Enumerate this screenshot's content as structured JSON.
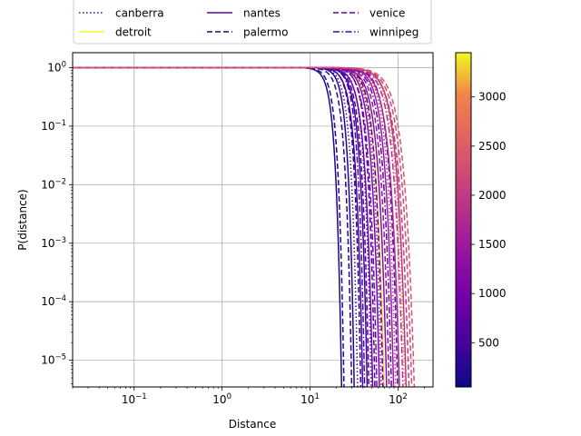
{
  "chart_data": {
    "type": "line",
    "xlabel": "Distance",
    "ylabel": "P(distance)",
    "xscale": "log",
    "yscale": "log",
    "xlim": [
      0.02,
      250
    ],
    "ylim": [
      3.5e-06,
      1.8
    ],
    "grid": true,
    "x_ticks": [
      {
        "value": 0.1,
        "base": "10",
        "exp": "−1"
      },
      {
        "value": 1,
        "base": "10",
        "exp": "0"
      },
      {
        "value": 10,
        "base": "10",
        "exp": "1"
      },
      {
        "value": 100,
        "base": "10",
        "exp": "2"
      }
    ],
    "y_ticks": [
      {
        "value": 1e-05,
        "base": "10",
        "exp": "−5"
      },
      {
        "value": 0.0001,
        "base": "10",
        "exp": "−4"
      },
      {
        "value": 0.001,
        "base": "10",
        "exp": "−3"
      },
      {
        "value": 0.01,
        "base": "10",
        "exp": "−2"
      },
      {
        "value": 0.1,
        "base": "10",
        "exp": "−1"
      },
      {
        "value": 1,
        "base": "10",
        "exp": "0"
      }
    ],
    "legend": {
      "placement": "top",
      "entries": [
        {
          "label": "canberra",
          "style": "dotted",
          "color": "#5b02a3"
        },
        {
          "label": "nantes",
          "style": "solid",
          "color": "#5b02a3"
        },
        {
          "label": "venice",
          "style": "dashed",
          "color": "#5b02a3"
        },
        {
          "label": "detroit",
          "style": "solid",
          "color": "#f0f921"
        },
        {
          "label": "palermo",
          "style": "dashed",
          "color": "#1c0b8a"
        },
        {
          "label": "winnipeg",
          "style": "dashdot",
          "color": "#3d049b"
        }
      ]
    },
    "colorbar": {
      "colormap": "plasma",
      "range": [
        50,
        3450
      ],
      "ticks": [
        500,
        1000,
        1500,
        2000,
        2500,
        3000
      ]
    },
    "series": [
      {
        "style": "solid",
        "cval": 150,
        "tail": 23,
        "k": 7
      },
      {
        "style": "dashed",
        "cval": 250,
        "tail": 24.5,
        "k": 7
      },
      {
        "style": "dashed",
        "cval": 300,
        "tail": 30,
        "k": 6.5
      },
      {
        "style": "solid",
        "cval": 200,
        "tail": 32,
        "k": 7
      },
      {
        "style": "dotted",
        "cval": 350,
        "tail": 35,
        "k": 6.5
      },
      {
        "style": "dashed",
        "cval": 400,
        "tail": 38,
        "k": 6.5
      },
      {
        "style": "solid",
        "cval": 500,
        "tail": 40,
        "k": 6
      },
      {
        "style": "dashdot",
        "cval": 600,
        "tail": 42,
        "k": 6.5
      },
      {
        "style": "solid",
        "cval": 450,
        "tail": 45,
        "k": 6
      },
      {
        "style": "dashed",
        "cval": 700,
        "tail": 47,
        "k": 6
      },
      {
        "style": "dotted",
        "cval": 800,
        "tail": 50,
        "k": 6
      },
      {
        "style": "solid",
        "cval": 900,
        "tail": 52,
        "k": 5.5
      },
      {
        "style": "dashed",
        "cval": 550,
        "tail": 55,
        "k": 6
      },
      {
        "style": "solid",
        "cval": 3300,
        "tail": 70,
        "k": 5
      },
      {
        "style": "dashdot",
        "cval": 1000,
        "tail": 58,
        "k": 5.5
      },
      {
        "style": "solid",
        "cval": 1100,
        "tail": 62,
        "k": 5.5
      },
      {
        "style": "dotted",
        "cval": 1200,
        "tail": 65,
        "k": 5.5
      },
      {
        "style": "dashed",
        "cval": 650,
        "tail": 68,
        "k": 5.5
      },
      {
        "style": "solid",
        "cval": 1300,
        "tail": 75,
        "k": 5
      },
      {
        "style": "dashed",
        "cval": 1400,
        "tail": 80,
        "k": 5
      },
      {
        "style": "dashdot",
        "cval": 750,
        "tail": 85,
        "k": 5
      },
      {
        "style": "solid",
        "cval": 1500,
        "tail": 90,
        "k": 5
      },
      {
        "style": "dotted",
        "cval": 1600,
        "tail": 95,
        "k": 5
      },
      {
        "style": "dashed",
        "cval": 850,
        "tail": 100,
        "k": 5
      },
      {
        "style": "solid",
        "cval": 1700,
        "tail": 105,
        "k": 4.5
      },
      {
        "style": "dashdot",
        "cval": 1800,
        "tail": 115,
        "k": 4.5
      },
      {
        "style": "dotted",
        "cval": 3000,
        "tail": 120,
        "k": 4.5
      },
      {
        "style": "solid",
        "cval": 1900,
        "tail": 125,
        "k": 4.5
      },
      {
        "style": "dashed",
        "cval": 2000,
        "tail": 135,
        "k": 4
      },
      {
        "style": "dashed",
        "cval": 2200,
        "tail": 145,
        "k": 4
      },
      {
        "style": "dashed",
        "cval": 2400,
        "tail": 155,
        "k": 4
      }
    ]
  }
}
